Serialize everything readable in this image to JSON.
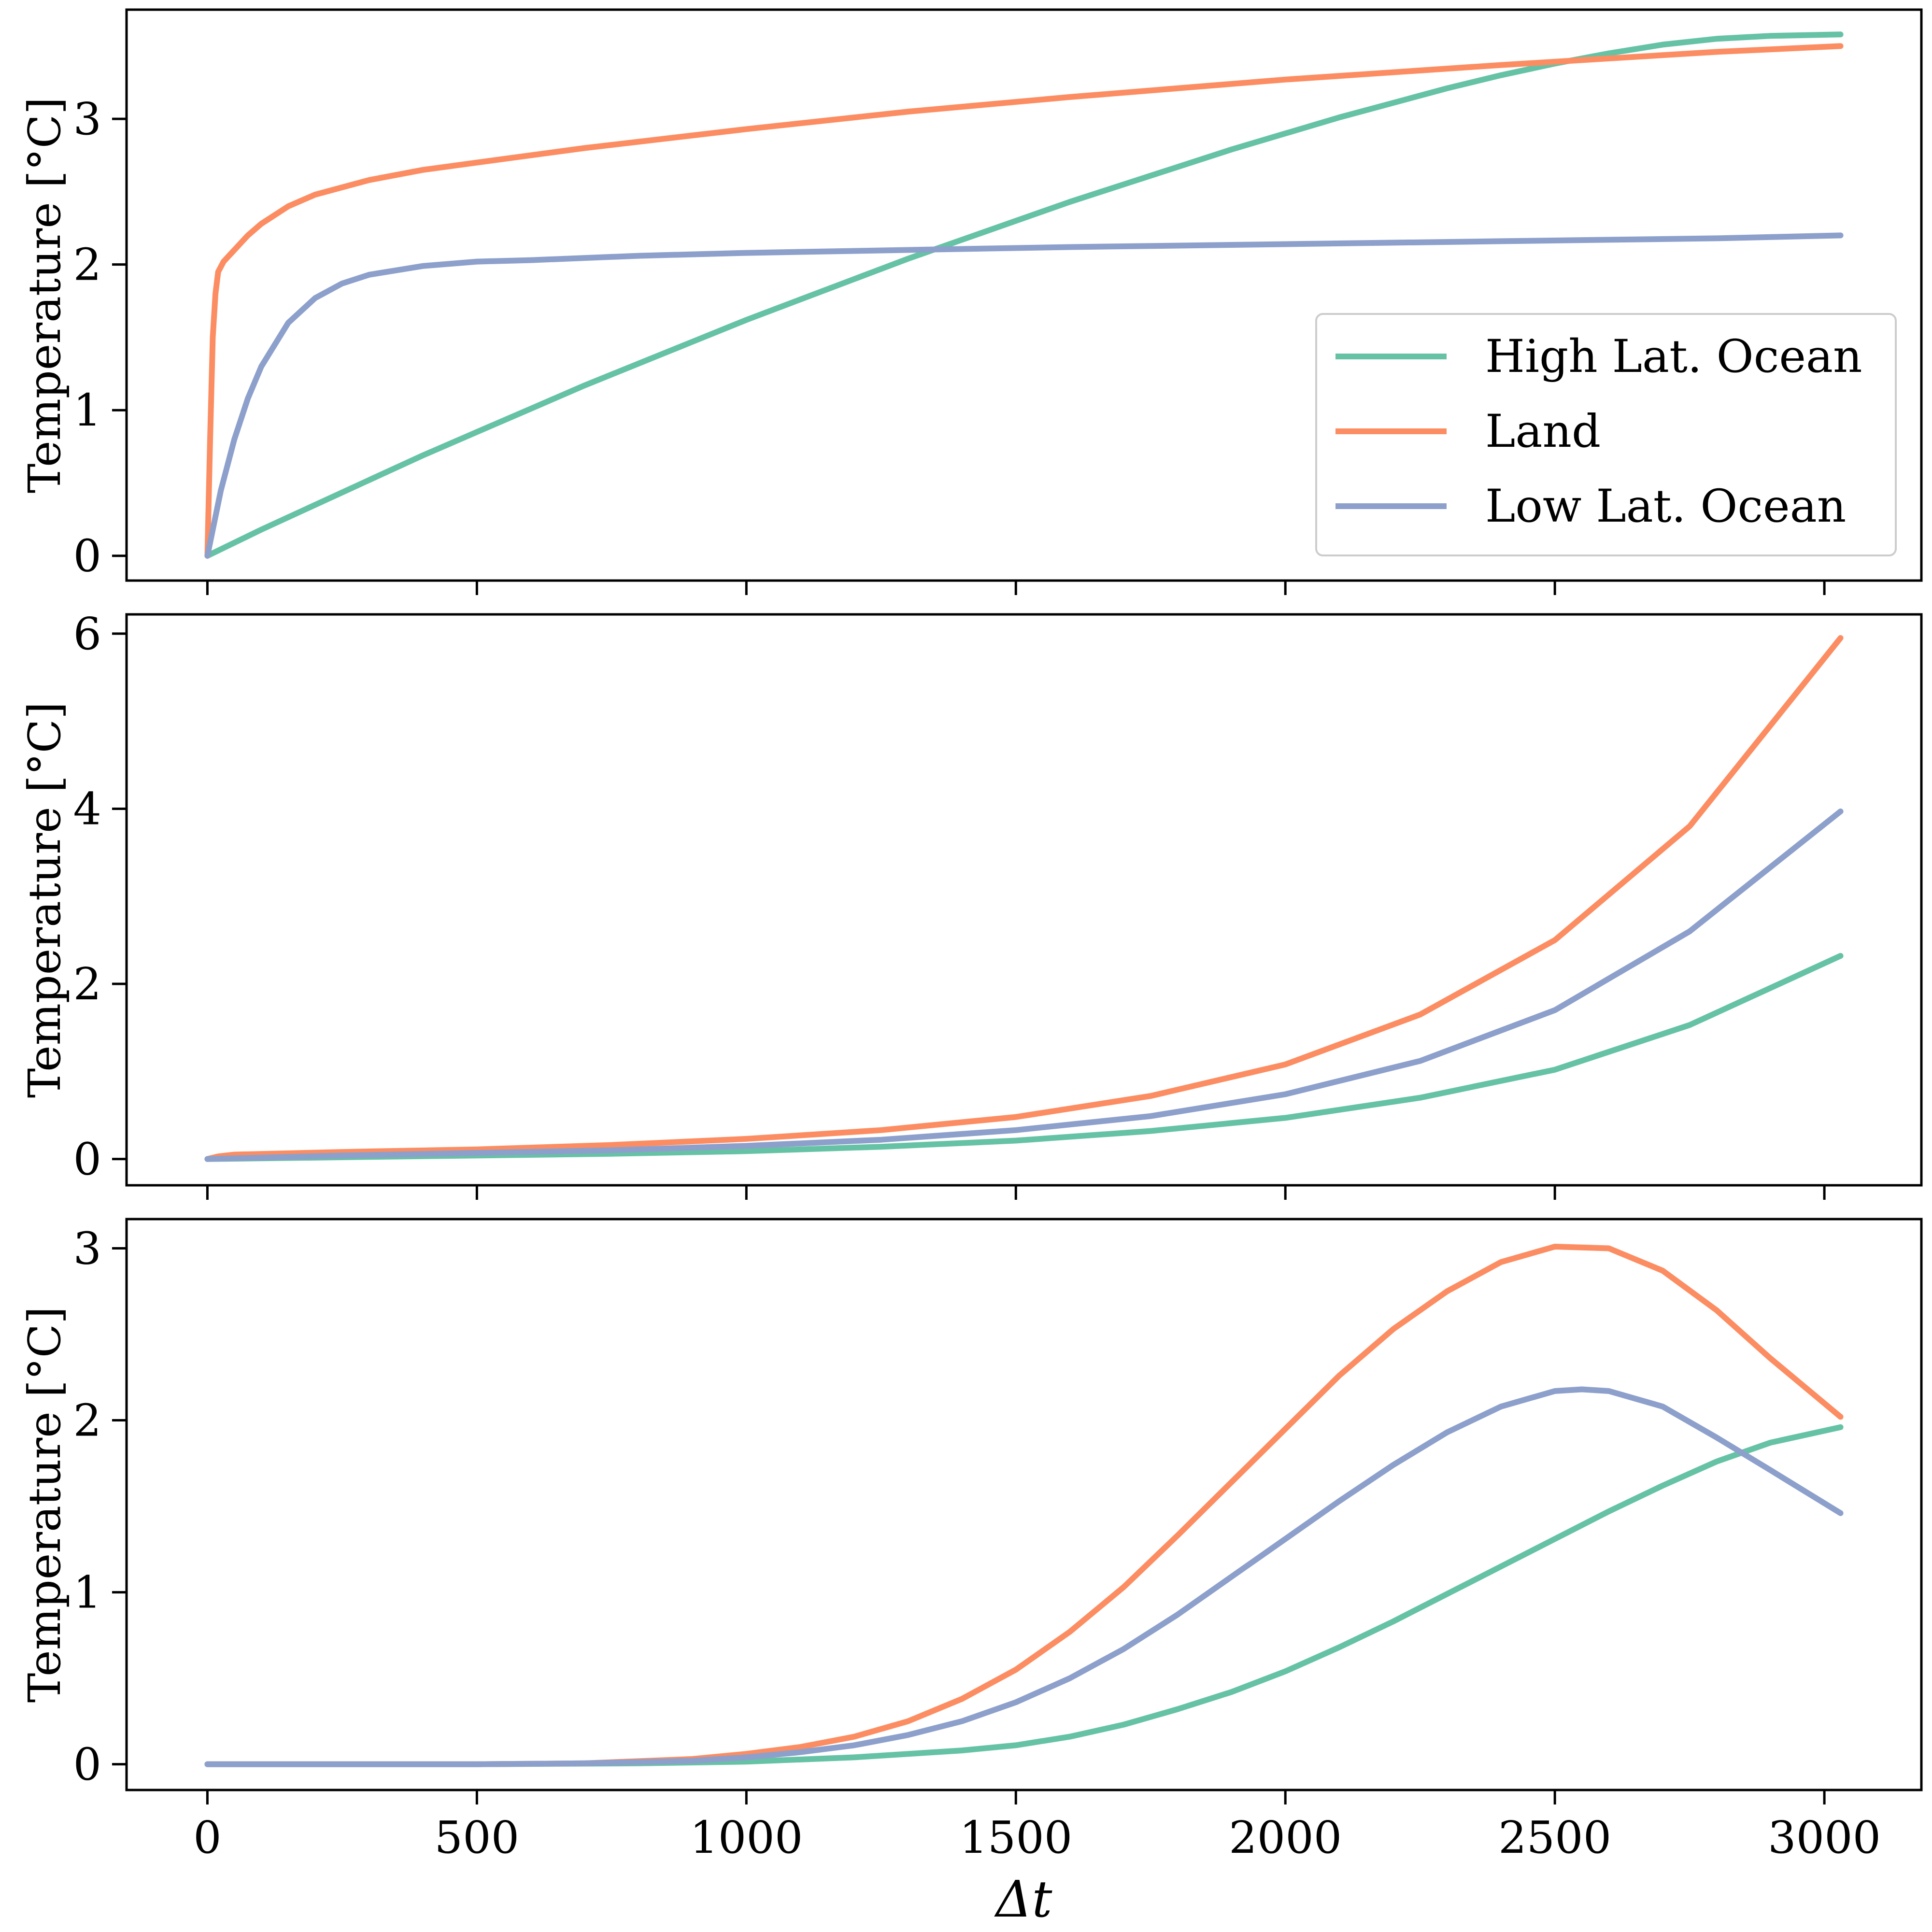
{
  "colors": {
    "high_lat_ocean": "#66c2a5",
    "land": "#fc8d62",
    "low_lat_ocean": "#8da0cb"
  },
  "chart_data": [
    {
      "type": "line",
      "panel": "top",
      "xlabel": "",
      "ylabel": "Temperature [°C]",
      "xlim": [
        -150,
        3180
      ],
      "ylim": [
        -0.17,
        3.75
      ],
      "xticks": [
        0,
        500,
        1000,
        1500,
        2000,
        2500,
        3000
      ],
      "xtick_labels_visible": false,
      "yticks": [
        0,
        1,
        2,
        3
      ],
      "ytick_labels": [
        "0",
        "1",
        "2",
        "3"
      ],
      "grid": false,
      "legend": {
        "placement": "lower-right",
        "entries": [
          "High Lat. Ocean",
          "Land",
          "Low Lat. Ocean"
        ]
      },
      "series": [
        {
          "name": "High Lat. Ocean",
          "color": "#66c2a5",
          "x": [
            0,
            100,
            200,
            300,
            400,
            500,
            600,
            700,
            800,
            900,
            1000,
            1100,
            1200,
            1300,
            1400,
            1500,
            1600,
            1700,
            1800,
            1900,
            2000,
            2100,
            2200,
            2300,
            2400,
            2500,
            2600,
            2700,
            2800,
            2900,
            3030
          ],
          "y": [
            0,
            0.18,
            0.35,
            0.52,
            0.69,
            0.85,
            1.01,
            1.17,
            1.32,
            1.47,
            1.62,
            1.76,
            1.9,
            2.04,
            2.17,
            2.3,
            2.43,
            2.55,
            2.67,
            2.79,
            2.9,
            3.01,
            3.11,
            3.21,
            3.3,
            3.38,
            3.45,
            3.51,
            3.55,
            3.57,
            3.58
          ]
        },
        {
          "name": "Land",
          "color": "#fc8d62",
          "x": [
            0,
            5,
            10,
            15,
            20,
            30,
            50,
            75,
            100,
            150,
            200,
            300,
            400,
            500,
            700,
            1000,
            1300,
            1600,
            2000,
            2400,
            2800,
            3030
          ],
          "y": [
            0,
            0.8,
            1.5,
            1.8,
            1.95,
            2.02,
            2.1,
            2.2,
            2.28,
            2.4,
            2.48,
            2.58,
            2.65,
            2.7,
            2.8,
            2.93,
            3.05,
            3.15,
            3.27,
            3.37,
            3.46,
            3.5
          ]
        },
        {
          "name": "Low Lat. Ocean",
          "color": "#8da0cb",
          "x": [
            0,
            25,
            50,
            75,
            100,
            150,
            200,
            250,
            300,
            400,
            500,
            600,
            800,
            1000,
            1300,
            1600,
            2000,
            2400,
            2800,
            3030
          ],
          "y": [
            0,
            0.45,
            0.8,
            1.08,
            1.3,
            1.6,
            1.77,
            1.87,
            1.93,
            1.99,
            2.02,
            2.03,
            2.06,
            2.08,
            2.1,
            2.12,
            2.14,
            2.16,
            2.18,
            2.2
          ]
        }
      ]
    },
    {
      "type": "line",
      "panel": "middle",
      "xlabel": "",
      "ylabel": "Temperature [°C]",
      "xlim": [
        -150,
        3180
      ],
      "ylim": [
        -0.3,
        6.22
      ],
      "xticks": [
        0,
        500,
        1000,
        1500,
        2000,
        2500,
        3000
      ],
      "xtick_labels_visible": false,
      "yticks": [
        0,
        2,
        4,
        6
      ],
      "ytick_labels": [
        "0",
        "2",
        "4",
        "6"
      ],
      "grid": false,
      "series": [
        {
          "name": "High Lat. Ocean",
          "color": "#66c2a5",
          "x": [
            0,
            250,
            500,
            750,
            1000,
            1250,
            1500,
            1750,
            2000,
            2250,
            2500,
            2750,
            3030
          ],
          "y": [
            0,
            0.02,
            0.04,
            0.06,
            0.09,
            0.14,
            0.21,
            0.32,
            0.47,
            0.7,
            1.02,
            1.53,
            2.32
          ]
        },
        {
          "name": "Land",
          "color": "#fc8d62",
          "x": [
            0,
            20,
            50,
            250,
            500,
            750,
            1000,
            1250,
            1500,
            1750,
            2000,
            2250,
            2500,
            2750,
            3030
          ],
          "y": [
            0,
            0.03,
            0.05,
            0.08,
            0.11,
            0.16,
            0.23,
            0.33,
            0.48,
            0.72,
            1.08,
            1.65,
            2.5,
            3.8,
            5.95
          ]
        },
        {
          "name": "Low Lat. Ocean",
          "color": "#8da0cb",
          "x": [
            0,
            250,
            500,
            750,
            1000,
            1250,
            1500,
            1750,
            2000,
            2250,
            2500,
            2750,
            3030
          ],
          "y": [
            0,
            0.04,
            0.07,
            0.1,
            0.15,
            0.22,
            0.33,
            0.49,
            0.74,
            1.12,
            1.7,
            2.6,
            3.97
          ]
        }
      ]
    },
    {
      "type": "line",
      "panel": "bottom",
      "xlabel": "Δt",
      "ylabel": "Temperature [°C]",
      "xlim": [
        -150,
        3180
      ],
      "ylim": [
        -0.15,
        3.17
      ],
      "xticks": [
        0,
        500,
        1000,
        1500,
        2000,
        2500,
        3000
      ],
      "xtick_labels": [
        "0",
        "500",
        "1000",
        "1500",
        "2000",
        "2500",
        "3000"
      ],
      "yticks": [
        0,
        1,
        2,
        3
      ],
      "ytick_labels": [
        "0",
        "1",
        "2",
        "3"
      ],
      "grid": false,
      "series": [
        {
          "name": "High Lat. Ocean",
          "color": "#66c2a5",
          "x": [
            0,
            500,
            800,
            1000,
            1200,
            1400,
            1500,
            1600,
            1700,
            1800,
            1900,
            2000,
            2100,
            2200,
            2300,
            2400,
            2500,
            2600,
            2700,
            2800,
            2900,
            3030
          ],
          "y": [
            0,
            0,
            0.005,
            0.015,
            0.04,
            0.08,
            0.11,
            0.16,
            0.23,
            0.32,
            0.42,
            0.54,
            0.68,
            0.83,
            0.99,
            1.15,
            1.31,
            1.47,
            1.62,
            1.76,
            1.87,
            1.96
          ]
        },
        {
          "name": "Land",
          "color": "#fc8d62",
          "x": [
            0,
            500,
            700,
            900,
            1000,
            1100,
            1200,
            1300,
            1400,
            1500,
            1600,
            1700,
            1800,
            1900,
            2000,
            2100,
            2200,
            2300,
            2400,
            2500,
            2600,
            2700,
            2800,
            2900,
            3030
          ],
          "y": [
            0,
            0,
            0.005,
            0.03,
            0.06,
            0.1,
            0.16,
            0.25,
            0.38,
            0.55,
            0.77,
            1.03,
            1.33,
            1.64,
            1.95,
            2.26,
            2.53,
            2.75,
            2.92,
            3.01,
            3.0,
            2.87,
            2.64,
            2.36,
            2.02
          ]
        },
        {
          "name": "Low Lat. Ocean",
          "color": "#8da0cb",
          "x": [
            0,
            500,
            700,
            900,
            1000,
            1100,
            1200,
            1300,
            1400,
            1500,
            1600,
            1700,
            1800,
            1900,
            2000,
            2100,
            2200,
            2300,
            2400,
            2500,
            2550,
            2600,
            2700,
            2800,
            2900,
            3030
          ],
          "y": [
            0,
            0,
            0.005,
            0.02,
            0.04,
            0.07,
            0.11,
            0.17,
            0.25,
            0.36,
            0.5,
            0.67,
            0.87,
            1.09,
            1.31,
            1.53,
            1.74,
            1.93,
            2.08,
            2.17,
            2.18,
            2.17,
            2.08,
            1.9,
            1.71,
            1.46
          ]
        }
      ]
    }
  ]
}
